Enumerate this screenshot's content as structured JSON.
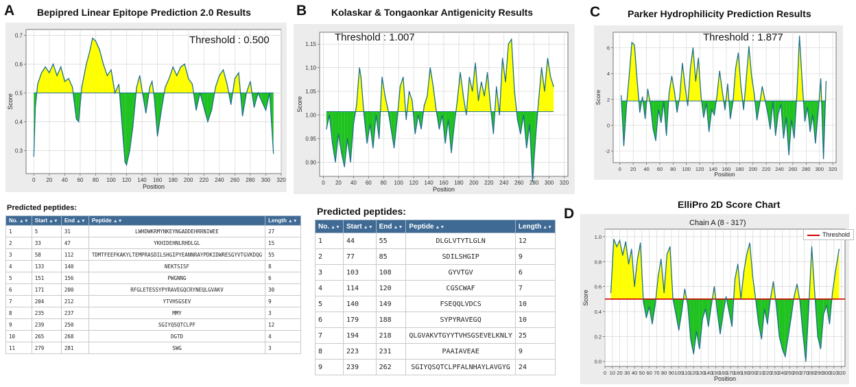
{
  "panels": {
    "A": {
      "letter": "A",
      "title": "Bepipred Linear Epitope Prediction 2.0 Results",
      "threshold_label": "Threshold : 0.500"
    },
    "B": {
      "letter": "B",
      "title": "Kolaskar & Tongaonkar Antigenicity Results",
      "threshold_label": "Threshold : 1.007"
    },
    "C": {
      "letter": "C",
      "title": "Parker Hydrophilicity Prediction Results",
      "threshold_label": "Threshold : 1.877"
    },
    "D": {
      "letter": "D",
      "title": "ElliPro 2D Score Chart",
      "chart_subtitle": "Chain A (8 - 317)",
      "legend": "Threshold"
    }
  },
  "peptidesA": {
    "label": "Predicted peptides:",
    "headers": [
      "No.",
      "Start",
      "End",
      "Peptide",
      "Length"
    ],
    "rows": [
      [
        "1",
        "5",
        "31",
        "LWHDWKRMYNKEYNGADDEHRRNIWEE",
        "27"
      ],
      [
        "2",
        "33",
        "47",
        "YKHIDEHNLRHDLGL",
        "15"
      ],
      [
        "3",
        "58",
        "112",
        "TDMTFEEFKAKYLTEMPRASDILSHGIPYEANNRAYPDKIDWRESGYVTGVKDQG",
        "55"
      ],
      [
        "4",
        "133",
        "140",
        "NEKTSISF",
        "8"
      ],
      [
        "5",
        "151",
        "156",
        "PWGNNG",
        "6"
      ],
      [
        "6",
        "171",
        "200",
        "RFGLETESSYPYRAVEGQCRYNEQLGVAKV",
        "30"
      ],
      [
        "7",
        "204",
        "212",
        "YTVHSGSEV",
        "9"
      ],
      [
        "8",
        "235",
        "237",
        "MMY",
        "3"
      ],
      [
        "9",
        "239",
        "250",
        "SGIYQSQTCLPF",
        "12"
      ],
      [
        "10",
        "265",
        "268",
        "DGTD",
        "4"
      ],
      [
        "11",
        "279",
        "281",
        "SWG",
        "3"
      ]
    ]
  },
  "peptidesB": {
    "label": "Predicted peptides:",
    "headers": [
      "No.",
      "Start",
      "End",
      "Peptide",
      "Length"
    ],
    "rows": [
      [
        "1",
        "44",
        "55",
        "DLGLVTYTLGLN",
        "12"
      ],
      [
        "2",
        "77",
        "85",
        "SDILSHGIP",
        "9"
      ],
      [
        "3",
        "103",
        "108",
        "GYVTGV",
        "6"
      ],
      [
        "4",
        "114",
        "120",
        "CGSCWAF",
        "7"
      ],
      [
        "5",
        "140",
        "149",
        "FSEQQLVDCS",
        "10"
      ],
      [
        "6",
        "179",
        "188",
        "SYPYRAVEGQ",
        "10"
      ],
      [
        "7",
        "194",
        "218",
        "QLGVAKVTGYYTVHSGSEVELKNLY",
        "25"
      ],
      [
        "8",
        "223",
        "231",
        "PAAIAVEAE",
        "9"
      ],
      [
        "9",
        "239",
        "262",
        "SGIYQSQTCLPFALNHAYLAVGYG",
        "24"
      ]
    ]
  },
  "chart_data": [
    {
      "id": "A",
      "type": "area",
      "title": "Bepipred Linear Epitope Prediction 2.0 Results",
      "xlabel": "Position",
      "ylabel": "Score",
      "xlim": [
        -10,
        320
      ],
      "ylim": [
        0.22,
        0.72
      ],
      "xticks": [
        0,
        20,
        40,
        60,
        80,
        100,
        120,
        140,
        160,
        180,
        200,
        220,
        240,
        260,
        280,
        300,
        320
      ],
      "yticks": [
        0.3,
        0.4,
        0.5,
        0.6,
        0.7
      ],
      "threshold": 0.5,
      "x": [
        0,
        2,
        5,
        10,
        15,
        20,
        25,
        30,
        35,
        40,
        45,
        50,
        55,
        58,
        62,
        68,
        72,
        76,
        80,
        85,
        90,
        95,
        100,
        105,
        110,
        115,
        118,
        120,
        124,
        128,
        133,
        137,
        140,
        145,
        150,
        153,
        156,
        160,
        165,
        170,
        175,
        180,
        185,
        190,
        195,
        200,
        205,
        210,
        215,
        220,
        225,
        230,
        235,
        240,
        245,
        250,
        255,
        260,
        265,
        270,
        275,
        280,
        285,
        290,
        295,
        300,
        305,
        310
      ],
      "y": [
        0.28,
        0.45,
        0.53,
        0.57,
        0.59,
        0.57,
        0.6,
        0.56,
        0.59,
        0.54,
        0.55,
        0.52,
        0.41,
        0.4,
        0.52,
        0.6,
        0.64,
        0.69,
        0.68,
        0.65,
        0.6,
        0.56,
        0.58,
        0.5,
        0.53,
        0.36,
        0.26,
        0.25,
        0.3,
        0.38,
        0.52,
        0.56,
        0.51,
        0.43,
        0.52,
        0.54,
        0.48,
        0.35,
        0.44,
        0.52,
        0.55,
        0.59,
        0.56,
        0.59,
        0.6,
        0.55,
        0.53,
        0.44,
        0.5,
        0.45,
        0.4,
        0.44,
        0.52,
        0.56,
        0.58,
        0.53,
        0.46,
        0.55,
        0.57,
        0.42,
        0.5,
        0.54,
        0.45,
        0.5,
        0.47,
        0.44,
        0.5,
        0.29
      ]
    },
    {
      "id": "B",
      "type": "area",
      "title": "Kolaskar & Tongaonkar Antigenicity Results",
      "xlabel": "Position",
      "ylabel": "Score",
      "xlim": [
        -5,
        325
      ],
      "ylim": [
        0.87,
        1.175
      ],
      "xticks": [
        0,
        20,
        40,
        60,
        80,
        100,
        120,
        140,
        160,
        180,
        200,
        220,
        240,
        260,
        280,
        300,
        320
      ],
      "yticks": [
        0.9,
        0.95,
        1.0,
        1.05,
        1.1,
        1.15
      ],
      "threshold": 1.007,
      "x": [
        4,
        8,
        12,
        16,
        20,
        24,
        28,
        32,
        36,
        40,
        44,
        48,
        50,
        54,
        58,
        62,
        66,
        70,
        74,
        78,
        82,
        86,
        90,
        94,
        98,
        102,
        106,
        110,
        114,
        118,
        122,
        126,
        130,
        134,
        138,
        142,
        146,
        150,
        154,
        158,
        162,
        166,
        170,
        174,
        178,
        182,
        186,
        190,
        194,
        198,
        202,
        206,
        210,
        214,
        218,
        222,
        226,
        230,
        234,
        238,
        242,
        246,
        250,
        254,
        258,
        262,
        266,
        270,
        274,
        278,
        282,
        286,
        290,
        294,
        298,
        302,
        306
      ],
      "y": [
        0.97,
        1.0,
        0.94,
        0.9,
        0.96,
        0.92,
        0.89,
        0.95,
        0.9,
        0.98,
        1.02,
        1.1,
        1.08,
        1.0,
        0.94,
        0.98,
        0.93,
        1.0,
        0.95,
        1.08,
        1.04,
        1.01,
        0.97,
        0.93,
        0.99,
        1.06,
        1.08,
        0.99,
        1.05,
        1.03,
        0.96,
        1.0,
        0.97,
        1.02,
        1.04,
        1.1,
        1.06,
        1.01,
        0.97,
        1.0,
        0.94,
        0.99,
        0.92,
        0.98,
        1.03,
        1.09,
        1.04,
        1.0,
        1.08,
        1.05,
        1.11,
        1.03,
        1.07,
        1.04,
        1.09,
        1.02,
        0.96,
        1.06,
        1.0,
        1.12,
        1.07,
        1.15,
        1.16,
        1.05,
        0.99,
        0.96,
        1.0,
        0.93,
        0.98,
        0.86,
        0.95,
        1.03,
        1.1,
        1.05,
        1.12,
        1.08,
        1.06
      ]
    },
    {
      "id": "C",
      "type": "area",
      "title": "Parker Hydrophilicity Prediction Results",
      "xlabel": "Position",
      "ylabel": "Score",
      "xlim": [
        -10,
        325
      ],
      "ylim": [
        -2.9,
        7.2
      ],
      "xticks": [
        0,
        20,
        40,
        60,
        80,
        100,
        120,
        140,
        160,
        180,
        200,
        220,
        240,
        260,
        280,
        300,
        320
      ],
      "yticks": [
        -2,
        0,
        2,
        4,
        6
      ],
      "threshold": 1.877,
      "x": [
        2,
        6,
        10,
        14,
        18,
        22,
        26,
        30,
        34,
        38,
        42,
        46,
        50,
        54,
        58,
        62,
        66,
        70,
        74,
        78,
        82,
        86,
        90,
        94,
        98,
        102,
        106,
        110,
        114,
        118,
        122,
        126,
        130,
        134,
        138,
        142,
        146,
        150,
        154,
        158,
        162,
        166,
        170,
        174,
        178,
        182,
        186,
        190,
        194,
        198,
        202,
        206,
        210,
        214,
        218,
        222,
        226,
        230,
        234,
        238,
        242,
        246,
        250,
        254,
        258,
        262,
        266,
        270,
        274,
        278,
        282,
        286,
        290,
        294,
        298,
        302,
        306,
        310
      ],
      "y": [
        2.3,
        -1.6,
        1.5,
        3.8,
        6.4,
        6.2,
        3.5,
        1.0,
        2.2,
        0.5,
        2.8,
        1.6,
        -0.3,
        -1.2,
        1.2,
        0.2,
        1.8,
        -0.8,
        2.5,
        3.8,
        2.6,
        1.0,
        2.2,
        4.8,
        3.0,
        1.5,
        4.4,
        6.0,
        3.4,
        5.2,
        2.2,
        0.6,
        1.7,
        -0.5,
        1.2,
        0.8,
        2.3,
        4.2,
        2.6,
        1.2,
        3.2,
        0.5,
        1.8,
        4.4,
        5.6,
        3.0,
        1.2,
        3.6,
        6.1,
        3.8,
        2.4,
        0.4,
        1.6,
        3.0,
        2.0,
        1.0,
        -0.3,
        1.8,
        -0.8,
        0.9,
        1.6,
        -1.0,
        0.6,
        -2.3,
        0.4,
        -1.0,
        2.4,
        6.9,
        3.4,
        0.3,
        1.4,
        -0.5,
        0.8,
        -1.4,
        1.0,
        3.6,
        -2.6,
        3.4
      ]
    },
    {
      "id": "D",
      "type": "area",
      "title": "ElliPro 2D Score Chart",
      "subtitle": "Chain A (8 - 317)",
      "xlabel": "Position",
      "ylabel": "Score",
      "xlim": [
        0,
        325
      ],
      "ylim": [
        -0.04,
        1.06
      ],
      "xticks": [
        0,
        10,
        20,
        30,
        40,
        50,
        60,
        70,
        80,
        90,
        100,
        110,
        120,
        130,
        140,
        150,
        160,
        170,
        180,
        190,
        200,
        210,
        220,
        230,
        240,
        250,
        260,
        270,
        280,
        290,
        300,
        310,
        320
      ],
      "yticks": [
        0.0,
        0.2,
        0.4,
        0.6,
        0.8,
        1.0
      ],
      "threshold": 0.5,
      "legend": "Threshold",
      "x": [
        8,
        12,
        16,
        20,
        24,
        28,
        32,
        36,
        40,
        44,
        48,
        52,
        56,
        60,
        64,
        68,
        72,
        76,
        80,
        84,
        88,
        92,
        96,
        100,
        104,
        108,
        112,
        116,
        120,
        124,
        128,
        132,
        136,
        140,
        144,
        148,
        152,
        156,
        160,
        164,
        168,
        172,
        176,
        180,
        184,
        188,
        192,
        196,
        200,
        204,
        208,
        212,
        216,
        220,
        224,
        228,
        232,
        236,
        240,
        244,
        248,
        252,
        256,
        260,
        264,
        268,
        272,
        276,
        280,
        284,
        288,
        292,
        296,
        300,
        304,
        308,
        312,
        317
      ],
      "y": [
        0.55,
        0.98,
        0.92,
        0.97,
        0.85,
        0.96,
        0.78,
        0.9,
        0.6,
        0.82,
        0.95,
        0.48,
        0.35,
        0.44,
        0.3,
        0.45,
        0.68,
        0.82,
        0.55,
        0.86,
        0.92,
        0.5,
        0.38,
        0.25,
        0.4,
        0.58,
        0.46,
        0.18,
        0.06,
        0.24,
        0.1,
        0.34,
        0.42,
        0.28,
        0.45,
        0.6,
        0.4,
        0.22,
        0.38,
        0.52,
        0.4,
        0.28,
        0.66,
        0.78,
        0.5,
        0.72,
        0.86,
        0.95,
        0.68,
        0.5,
        0.3,
        0.18,
        0.42,
        0.3,
        0.5,
        0.64,
        0.45,
        0.2,
        0.1,
        0.04,
        0.2,
        0.35,
        0.52,
        0.62,
        0.48,
        0.22,
        0.0,
        0.44,
        0.92,
        0.55,
        0.2,
        0.1,
        0.38,
        0.45,
        0.3,
        0.55,
        0.72,
        0.9
      ]
    }
  ]
}
